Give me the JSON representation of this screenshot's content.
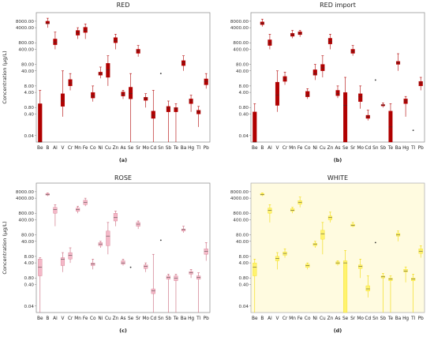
{
  "chart_data": [
    {
      "type": "box",
      "panel": "(a)",
      "title": "RED",
      "ylabel": "Concentration (μg/L)",
      "yscale": "log",
      "ylim": [
        0.02,
        20000
      ],
      "yticks": [
        "8000.00",
        "4000.00",
        "800.00",
        "400.00",
        "80.00",
        "40.00",
        "8.00",
        "4.00",
        "0.80",
        "0.40",
        "0.04"
      ],
      "colors": {
        "box": "#b00000",
        "whisker": "#b00000",
        "outlier": "#333333"
      },
      "categories": [
        "Be",
        "B",
        "Al",
        "V",
        "Cr",
        "Mn",
        "Fe",
        "Co",
        "Ni",
        "Cu",
        "Zn",
        "As",
        "Se",
        "Sr",
        "Mo",
        "Cd",
        "Sn",
        "Sb",
        "Te",
        "Ba",
        "Hg",
        "Tl",
        "Pb"
      ],
      "boxes": [
        {
          "low": 0.02,
          "q1": 0.02,
          "median": 0.02,
          "q3": 1.2,
          "high": 5
        },
        {
          "low": 4000,
          "q1": 6000,
          "median": 6500,
          "q3": 8000,
          "high": 11000
        },
        {
          "low": 400,
          "q1": 650,
          "median": 850,
          "q3": 1200,
          "high": 2500
        },
        {
          "low": 0.3,
          "q1": 0.9,
          "median": 1.6,
          "q3": 3.5,
          "high": 40
        },
        {
          "low": 5,
          "q1": 8,
          "median": 11,
          "q3": 16,
          "high": 30
        },
        {
          "low": 1200,
          "q1": 1800,
          "median": 2300,
          "q3": 3000,
          "high": 4000
        },
        {
          "low": 1200,
          "q1": 2400,
          "median": 3000,
          "q3": 4200,
          "high": 6000
        },
        {
          "low": 1.5,
          "q1": 2.2,
          "median": 2.8,
          "q3": 4,
          "high": 8
        },
        {
          "low": 18,
          "q1": 25,
          "median": 30,
          "q3": 35,
          "high": 60
        },
        {
          "low": 8,
          "q1": 20,
          "median": 45,
          "q3": 90,
          "high": 200
        },
        {
          "low": 400,
          "q1": 800,
          "median": 1000,
          "q3": 1400,
          "high": 2000
        },
        {
          "low": 2,
          "q1": 2.7,
          "median": 3.2,
          "q3": 4.2,
          "high": 5
        },
        {
          "low": 0.02,
          "q1": 2,
          "median": 3.5,
          "q3": 7,
          "high": 30
        },
        {
          "low": 180,
          "q1": 260,
          "median": 330,
          "q3": 400,
          "high": 600
        },
        {
          "low": 0.8,
          "q1": 1.7,
          "median": 2.1,
          "q3": 2.4,
          "high": 3.5
        },
        {
          "low": 0.02,
          "q1": 0.25,
          "median": 0.35,
          "q3": 0.55,
          "high": 5
        },
        {
          "outlier": 30
        },
        {
          "low": 0.02,
          "q1": 0.5,
          "median": 0.75,
          "q3": 0.9,
          "high": 1.6
        },
        {
          "low": 0.02,
          "q1": 0.5,
          "median": 0.7,
          "q3": 0.8,
          "high": 1.2
        },
        {
          "low": 40,
          "q1": 70,
          "median": 95,
          "q3": 120,
          "high": 200
        },
        {
          "low": 0.5,
          "q1": 1.2,
          "median": 1.6,
          "q3": 2,
          "high": 3
        },
        {
          "low": 0.1,
          "q1": 0.4,
          "median": 0.5,
          "q3": 0.6,
          "high": 0.9
        },
        {
          "low": 6,
          "q1": 9,
          "median": 13,
          "q3": 17,
          "high": 30
        }
      ]
    },
    {
      "type": "box",
      "panel": "(b)",
      "title": "RED import",
      "ylabel": "",
      "yscale": "log",
      "ylim": [
        0.02,
        20000
      ],
      "yticks": [
        "8000.00",
        "4000.00",
        "800.00",
        "400.00",
        "80.00",
        "40.00",
        "8.00",
        "4.00",
        "0.80",
        "0.40",
        "0.04"
      ],
      "colors": {
        "box": "#b00000",
        "whisker": "#b00000",
        "outlier": "#333333"
      },
      "categories": [
        "Be",
        "B",
        "Al",
        "V",
        "Cr",
        "Mn",
        "Fe",
        "Co",
        "Ni",
        "Cu",
        "Zn",
        "As",
        "Se",
        "Sr",
        "Mo",
        "Cd",
        "Sn",
        "Sb",
        "Te",
        "Ba",
        "Hg",
        "Tl",
        "Pb"
      ],
      "boxes": [
        {
          "low": 0.02,
          "q1": 0.02,
          "median": 0.02,
          "q3": 0.5,
          "high": 1.2
        },
        {
          "low": 4500,
          "q1": 5500,
          "median": 6500,
          "q3": 7500,
          "high": 10000
        },
        {
          "low": 400,
          "q1": 600,
          "median": 800,
          "q3": 1100,
          "high": 2000
        },
        {
          "low": 0.5,
          "q1": 1,
          "median": 3,
          "q3": 12,
          "high": 40
        },
        {
          "low": 9,
          "q1": 13,
          "median": 17,
          "q3": 22,
          "high": 35
        },
        {
          "low": 1300,
          "q1": 1600,
          "median": 1900,
          "q3": 2200,
          "high": 3000
        },
        {
          "low": 1500,
          "q1": 1900,
          "median": 2200,
          "q3": 2600,
          "high": 3000
        },
        {
          "low": 2,
          "q1": 2.5,
          "median": 3,
          "q3": 4.5,
          "high": 6
        },
        {
          "low": 15,
          "q1": 25,
          "median": 30,
          "q3": 45,
          "high": 80
        },
        {
          "low": 20,
          "q1": 40,
          "median": 55,
          "q3": 80,
          "high": 200
        },
        {
          "low": 400,
          "q1": 700,
          "median": 900,
          "q3": 1300,
          "high": 2000
        },
        {
          "low": 2.2,
          "q1": 2.8,
          "median": 3.5,
          "q3": 5,
          "high": 8
        },
        {
          "low": 0.02,
          "q1": 0.02,
          "median": 1,
          "q3": 4,
          "high": 20
        },
        {
          "low": 200,
          "q1": 260,
          "median": 320,
          "q3": 400,
          "high": 600
        },
        {
          "low": 0.7,
          "q1": 1.5,
          "median": 2.5,
          "q3": 3.5,
          "high": 8
        },
        {
          "low": 0.2,
          "q1": 0.25,
          "median": 0.3,
          "q3": 0.35,
          "high": 0.6
        },
        {
          "outlier": 15
        },
        {
          "low": 0.8,
          "q1": 0.95,
          "median": 1.05,
          "q3": 1.1,
          "high": 1.3
        },
        {
          "low": 0.02,
          "q1": 0.02,
          "median": 0.1,
          "q3": 0.55,
          "high": 1.2
        },
        {
          "low": 40,
          "q1": 80,
          "median": 95,
          "q3": 110,
          "high": 250
        },
        {
          "low": 0.3,
          "q1": 1.2,
          "median": 1.6,
          "q3": 2,
          "high": 2.6
        },
        {
          "outlier": 0.07
        },
        {
          "low": 5,
          "q1": 8,
          "median": 11,
          "q3": 13,
          "high": 20
        }
      ]
    },
    {
      "type": "box",
      "panel": "(c)",
      "title": "ROSE",
      "ylabel": "Concentration (μg/L)",
      "yscale": "log",
      "ylim": [
        0.02,
        20000
      ],
      "yticks": [
        "8000.00",
        "4000.00",
        "800.00",
        "400.00",
        "80.00",
        "40.00",
        "8.00",
        "4.00",
        "0.80",
        "0.40",
        "0.04"
      ],
      "colors": {
        "box": "#f4b8c8",
        "whisker": "#c86478",
        "outlier": "#333333"
      },
      "categories": [
        "Be",
        "B",
        "Al",
        "V",
        "Cr",
        "Mn",
        "Fe",
        "Co",
        "Ni",
        "Cu",
        "Zn",
        "As",
        "Se",
        "Sr",
        "Mo",
        "Cd",
        "Sn",
        "Sb",
        "Te",
        "Ba",
        "Hg",
        "Tl",
        "Pb"
      ],
      "boxes": [
        {
          "low": 0.02,
          "q1": 1,
          "median": 2.5,
          "q3": 6,
          "high": 7
        },
        {
          "low": 5000,
          "q1": 5500,
          "median": 6000,
          "q3": 6500,
          "high": 7000
        },
        {
          "low": 200,
          "q1": 800,
          "median": 1200,
          "q3": 1500,
          "high": 2000
        },
        {
          "low": 1.5,
          "q1": 3,
          "median": 6,
          "q3": 7,
          "high": 12
        },
        {
          "low": 4,
          "q1": 6,
          "median": 9,
          "q3": 12,
          "high": 20
        },
        {
          "low": 800,
          "q1": 1000,
          "median": 1200,
          "q3": 1400,
          "high": 1700
        },
        {
          "low": 1700,
          "q1": 2000,
          "median": 2600,
          "q3": 3200,
          "high": 4000
        },
        {
          "low": 2,
          "q1": 3,
          "median": 3.5,
          "q3": 4,
          "high": 6
        },
        {
          "low": 20,
          "q1": 25,
          "median": 30,
          "q3": 35,
          "high": 40
        },
        {
          "low": 10,
          "q1": 25,
          "median": 70,
          "q3": 120,
          "high": 300
        },
        {
          "low": 200,
          "q1": 350,
          "median": 500,
          "q3": 800,
          "high": 1000
        },
        {
          "low": 3,
          "q1": 3.5,
          "median": 4,
          "q3": 5,
          "high": 6
        },
        {
          "outlier": 2.5
        },
        {
          "low": 150,
          "q1": 200,
          "median": 250,
          "q3": 300,
          "high": 350
        },
        {
          "low": 1.5,
          "q1": 2.2,
          "median": 2.8,
          "q3": 3.2,
          "high": 4
        },
        {
          "low": 0.02,
          "q1": 0.15,
          "median": 0.2,
          "q3": 0.25,
          "high": 10
        },
        {
          "outlier": 45
        },
        {
          "low": 0.02,
          "q1": 0.7,
          "median": 0.85,
          "q3": 1,
          "high": 1.2
        },
        {
          "low": 0.02,
          "q1": 0.6,
          "median": 0.8,
          "q3": 1,
          "high": 1.2
        },
        {
          "low": 100,
          "q1": 120,
          "median": 140,
          "q3": 150,
          "high": 200
        },
        {
          "low": 0.8,
          "q1": 1.2,
          "median": 1.4,
          "q3": 1.6,
          "high": 2
        },
        {
          "low": 0.02,
          "q1": 0.7,
          "median": 0.85,
          "q3": 1,
          "high": 1.4
        },
        {
          "low": 5,
          "q1": 10,
          "median": 14,
          "q3": 18,
          "high": 35
        }
      ]
    },
    {
      "type": "box",
      "panel": "(d)",
      "title": "WHITE",
      "ylabel": "",
      "yscale": "log",
      "ylim": [
        0.02,
        20000
      ],
      "yticks": [
        "8000.00",
        "4000.00",
        "800.00",
        "400.00",
        "80.00",
        "40.00",
        "8.00",
        "4.00",
        "0.80",
        "0.40",
        "0.04"
      ],
      "colors": {
        "box": "#fff36e",
        "whisker": "#f0d800",
        "outlier": "#333333"
      },
      "categories": [
        "Be",
        "B",
        "Al",
        "V",
        "Cr",
        "Mn",
        "Fe",
        "Co",
        "Ni",
        "Cu",
        "Zn",
        "As",
        "Se",
        "Sr",
        "Mo",
        "Cd",
        "Sn",
        "Sb",
        "Te",
        "Ba",
        "Hg",
        "Tl",
        "Pb"
      ],
      "boxes": [
        {
          "low": 0.02,
          "q1": 1,
          "median": 2.5,
          "q3": 4,
          "high": 6
        },
        {
          "low": 5000,
          "q1": 5500,
          "median": 6000,
          "q3": 6500,
          "high": 7000
        },
        {
          "low": 300,
          "q1": 800,
          "median": 1100,
          "q3": 1400,
          "high": 2000
        },
        {
          "low": 2,
          "q1": 5,
          "median": 6.5,
          "q3": 8,
          "high": 12
        },
        {
          "low": 7,
          "q1": 9,
          "median": 11,
          "q3": 13,
          "high": 18
        },
        {
          "low": 800,
          "q1": 1000,
          "median": 1100,
          "q3": 1300,
          "high": 1500
        },
        {
          "low": 1500,
          "q1": 2100,
          "median": 2600,
          "q3": 3100,
          "high": 4500
        },
        {
          "low": 2,
          "q1": 2.5,
          "median": 3,
          "q3": 3.5,
          "high": 4
        },
        {
          "low": 20,
          "q1": 25,
          "median": 30,
          "q3": 33,
          "high": 40
        },
        {
          "low": 10,
          "q1": 50,
          "median": 90,
          "q3": 130,
          "high": 300
        },
        {
          "low": 300,
          "q1": 400,
          "median": 500,
          "q3": 600,
          "high": 900
        },
        {
          "low": 3,
          "q1": 3.5,
          "median": 4,
          "q3": 4.5,
          "high": 5
        },
        {
          "low": 0.02,
          "q1": 0.02,
          "median": 4,
          "q3": 5,
          "high": 15
        },
        {
          "low": 180,
          "q1": 200,
          "median": 220,
          "q3": 250,
          "high": 300
        },
        {
          "low": 0.8,
          "q1": 2.2,
          "median": 2.8,
          "q3": 3.2,
          "high": 6
        },
        {
          "low": 0.1,
          "q1": 0.2,
          "median": 0.25,
          "q3": 0.35,
          "high": 1
        },
        {
          "outlier": 35
        },
        {
          "low": 0.02,
          "q1": 0.8,
          "median": 0.9,
          "q3": 1,
          "high": 1.3
        },
        {
          "low": 0.02,
          "q1": 0.6,
          "median": 0.7,
          "q3": 0.8,
          "high": 1
        },
        {
          "low": 40,
          "q1": 70,
          "median": 80,
          "q3": 95,
          "high": 120
        },
        {
          "low": 0.5,
          "q1": 1.5,
          "median": 1.7,
          "q3": 2,
          "high": 2.6
        },
        {
          "low": 0.02,
          "q1": 0.6,
          "median": 0.7,
          "q3": 0.8,
          "high": 1.2
        },
        {
          "low": 7,
          "q1": 11,
          "median": 14,
          "q3": 18,
          "high": 25
        }
      ]
    }
  ]
}
